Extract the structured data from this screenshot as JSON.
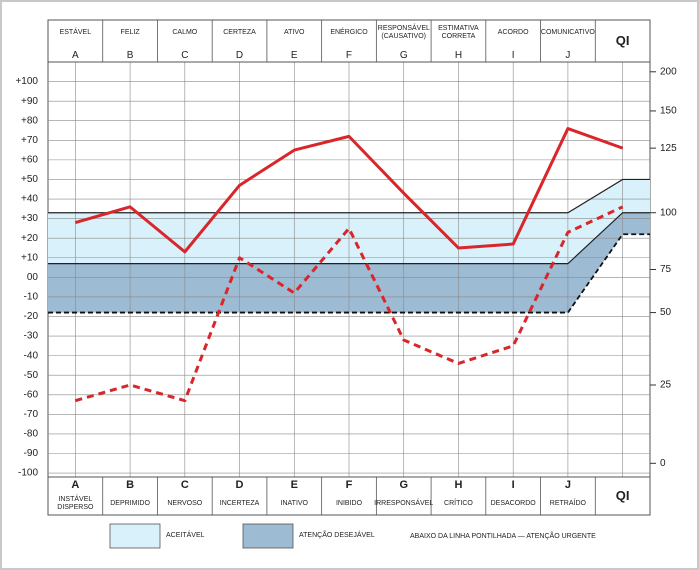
{
  "chart_data": {
    "type": "line",
    "columns": [
      {
        "top": "ESTÁVEL",
        "letter": "A",
        "bottom": "INSTÁVEL DISPERSO"
      },
      {
        "top": "FELIZ",
        "letter": "B",
        "bottom": "DEPRIMIDO"
      },
      {
        "top": "CALMO",
        "letter": "C",
        "bottom": "NERVOSO"
      },
      {
        "top": "CERTEZA",
        "letter": "D",
        "bottom": "INCERTEZA"
      },
      {
        "top": "ATIVO",
        "letter": "E",
        "bottom": "INATIVO"
      },
      {
        "top": "ENÉRGICO",
        "letter": "F",
        "bottom": "INIBIDO"
      },
      {
        "top": "RESPONSÁVEL (CAUSATIVO)",
        "letter": "G",
        "bottom": "IRRESPONSÁVEL"
      },
      {
        "top": "ESTIMATIVA CORRETA",
        "letter": "H",
        "bottom": "CRÍTICO"
      },
      {
        "top": "ACORDO",
        "letter": "I",
        "bottom": "DESACORDO"
      },
      {
        "top": "COMUNICATIVO",
        "letter": "J",
        "bottom": "RETRAÍDO"
      },
      {
        "top": "QI",
        "bottom": "QI"
      }
    ],
    "series": [
      {
        "color": "#d9262b",
        "dashed": false,
        "values": [
          28,
          36,
          13,
          47,
          65,
          72,
          43,
          15,
          17,
          76,
          66
        ]
      },
      {
        "color": "#d9262b",
        "dashed": true,
        "values": [
          -63,
          -55,
          -63,
          10,
          -8,
          25,
          -32,
          -44,
          -35,
          23,
          36
        ]
      }
    ],
    "zones": [
      {
        "name": "ACEITÁVEL",
        "color": "#d9f1fa",
        "upper": [
          33,
          50
        ],
        "lower": [
          7,
          33
        ]
      },
      {
        "name": "ATENÇÃO DESEJÁVEL",
        "color": "#9dbbd3",
        "upper": [
          7,
          33
        ],
        "lower": [
          -18,
          22
        ]
      }
    ],
    "urgent_line": {
      "label": "ABAIXO DA LINHA PONTILHADA — ATENÇÃO URGENTE",
      "values": [
        -18,
        22
      ]
    },
    "ylim": [
      -102,
      110
    ],
    "yticks": [
      {
        "value": 100,
        "label": "+100"
      },
      {
        "value": 90,
        "label": "+90"
      },
      {
        "value": 80,
        "label": "+80"
      },
      {
        "value": 70,
        "label": "+70"
      },
      {
        "value": 60,
        "label": "+60"
      },
      {
        "value": 50,
        "label": "+50"
      },
      {
        "value": 40,
        "label": "+40"
      },
      {
        "value": 30,
        "label": "+30"
      },
      {
        "value": 20,
        "label": "+20"
      },
      {
        "value": 10,
        "label": "+10"
      },
      {
        "value": 0,
        "label": "00"
      },
      -10,
      -20,
      -30,
      -40,
      -50,
      -60,
      -70,
      -80,
      -90,
      -100
    ],
    "y2ticks": [
      200,
      150,
      125,
      100,
      75,
      50,
      25,
      0
    ],
    "y2_scale": [
      105,
      85,
      66,
      33,
      4,
      -18,
      -55,
      -95
    ],
    "grid": true
  }
}
